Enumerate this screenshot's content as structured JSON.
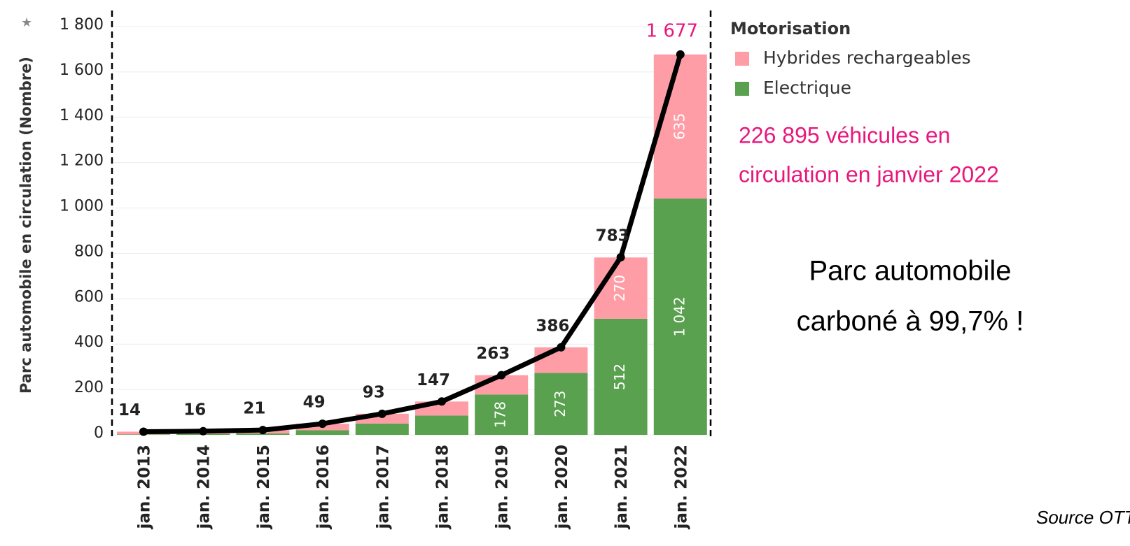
{
  "chart_data": {
    "type": "bar",
    "stacked": true,
    "y_label": "Parc automobile en circulation (Nombre)",
    "categories": [
      "jan. 2013",
      "jan. 2014",
      "jan. 2015",
      "jan. 2016",
      "jan. 2017",
      "jan. 2018",
      "jan. 2019",
      "jan. 2020",
      "jan. 2021",
      "jan. 2022"
    ],
    "legend_title": "Motorisation",
    "series": [
      {
        "name": "Electrique",
        "color": "#59a14f",
        "values": [
          2,
          4,
          6,
          20,
          50,
          85,
          178,
          273,
          512,
          1042
        ],
        "value_labels": [
          null,
          null,
          null,
          null,
          null,
          null,
          "178",
          "273",
          "512",
          "1 042"
        ]
      },
      {
        "name": "Hybrides rechargeables",
        "color": "#ff9da7",
        "values": [
          12,
          12,
          15,
          29,
          43,
          62,
          85,
          113,
          270,
          635
        ],
        "value_labels": [
          null,
          null,
          null,
          null,
          null,
          null,
          null,
          null,
          "270",
          "635"
        ]
      }
    ],
    "totals": {
      "color": "#000000",
      "values": [
        14,
        16,
        21,
        49,
        93,
        147,
        263,
        386,
        783,
        1677
      ],
      "value_labels": [
        "14",
        "16",
        "21",
        "49",
        "93",
        "147",
        "263",
        "386",
        "783",
        "1 677"
      ],
      "highlight_color": "#e8177d"
    },
    "ylim": [
      0,
      1800
    ],
    "yticks": [
      0,
      200,
      400,
      600,
      800,
      {
        "value": 1000,
        "label": "1 000"
      },
      {
        "value": 1200,
        "label": "1 200"
      },
      {
        "value": 1400,
        "label": "1 400"
      },
      {
        "value": 1600,
        "label": "1 600"
      },
      {
        "value": 1800,
        "label": "1 800"
      }
    ],
    "grid": true,
    "annotations": [
      {
        "lines": [
          "226 895 véhicules en",
          "circulation en janvier 2022"
        ],
        "color": "#e8177d"
      },
      {
        "lines": [
          "Parc automobile",
          "carboné à 99,7% !"
        ],
        "color": "#000000"
      }
    ],
    "source": "Source OTT"
  }
}
